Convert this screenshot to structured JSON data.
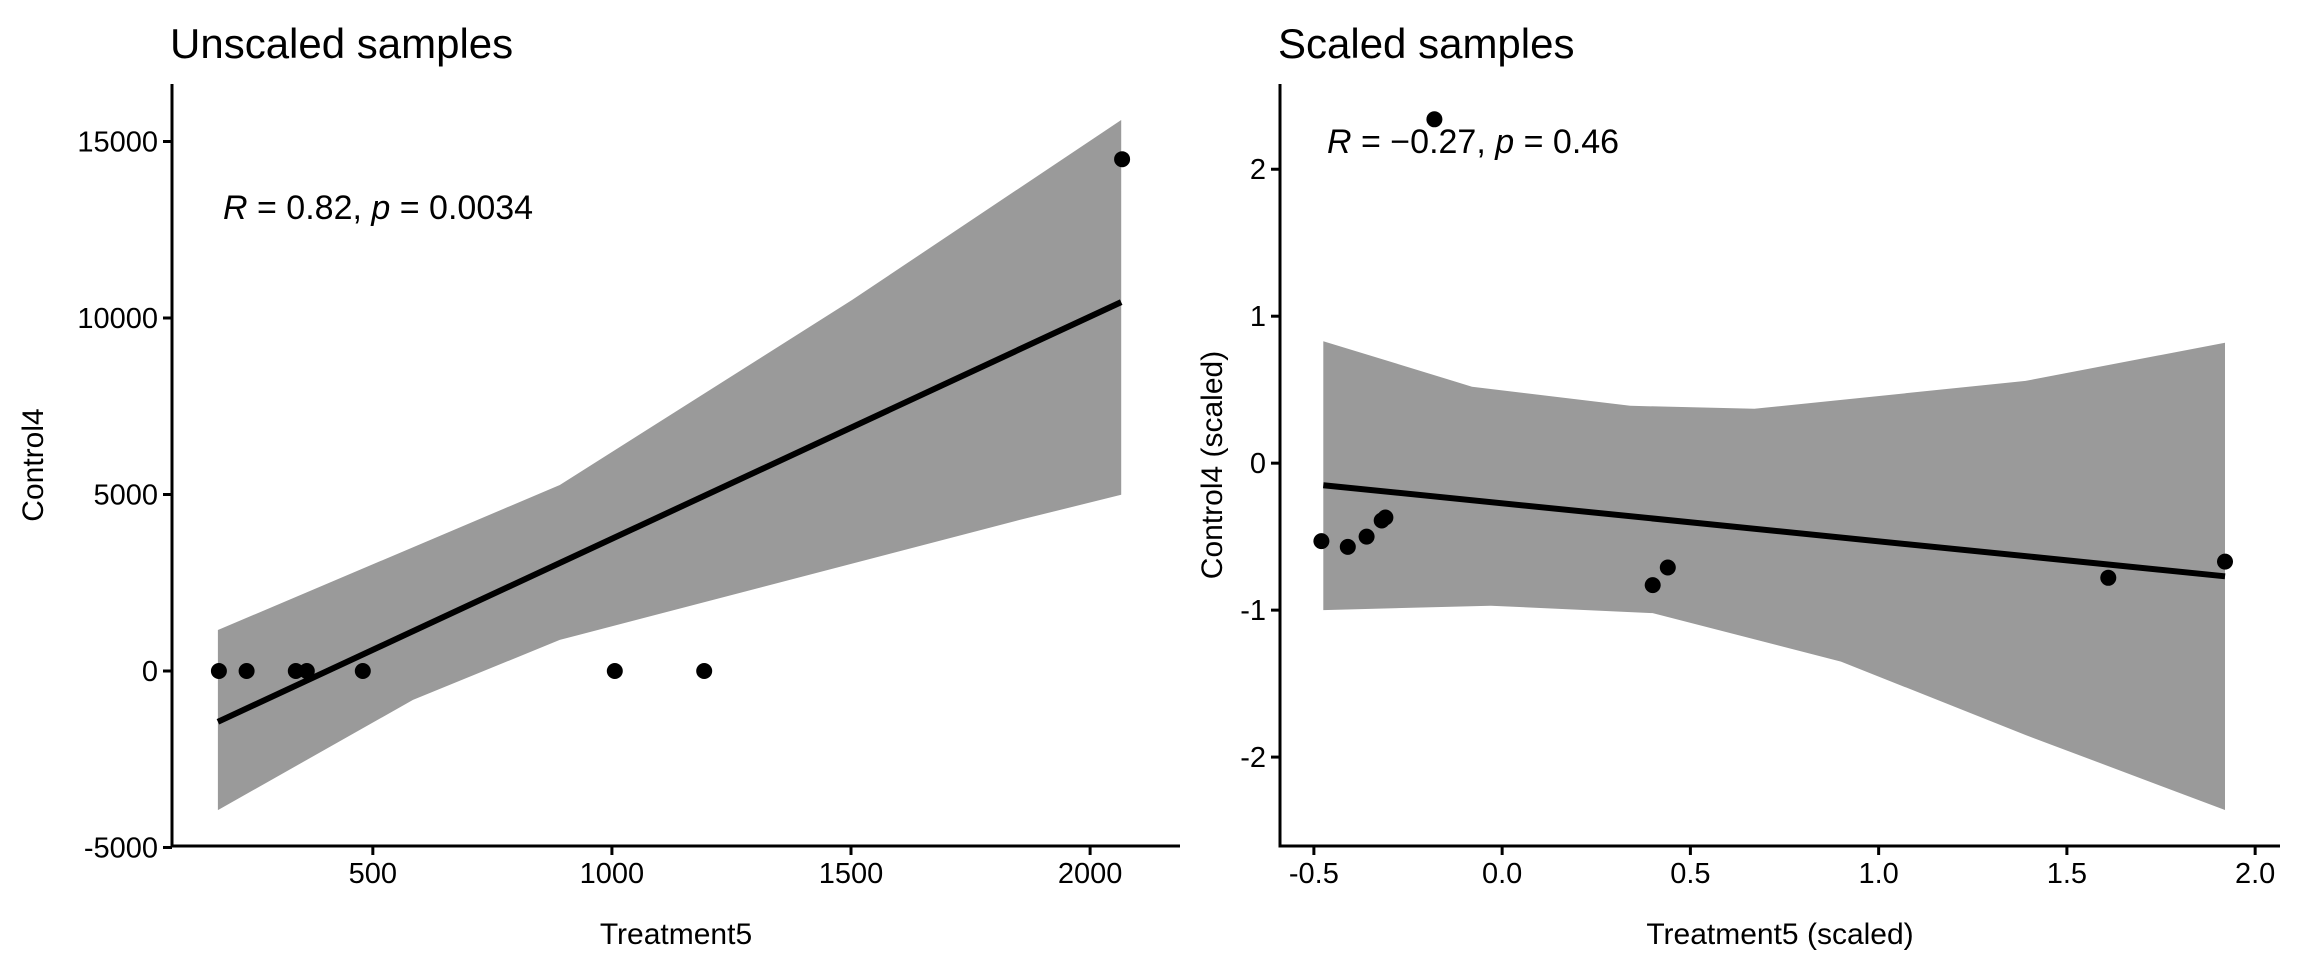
{
  "figure": {
    "background": "#ffffff"
  },
  "colors": {
    "band": "#9a9a9a",
    "line": "#000000",
    "points": "#000000",
    "axis": "#000000",
    "text": "#000000"
  },
  "chart_data": [
    {
      "type": "scatter",
      "title": "Unscaled samples",
      "xlabel": "Treatment5",
      "ylabel": "Control4",
      "stats": {
        "R": 0.82,
        "p": 0.0034
      },
      "annotation": {
        "r": "R",
        "r_rest": " = 0.82, ",
        "p": "p",
        "p_rest": " = 0.0034"
      },
      "legend": "none",
      "grid": false,
      "xlim": [
        80,
        2188
      ],
      "ylim": [
        -4958,
        16629
      ],
      "x_ticks": [
        {
          "v": 500,
          "label": "500"
        },
        {
          "v": 1000,
          "label": "1000"
        },
        {
          "v": 1500,
          "label": "1500"
        },
        {
          "v": 2000,
          "label": "2000"
        }
      ],
      "y_ticks": [
        {
          "v": -5000,
          "label": "-5000"
        },
        {
          "v": 0,
          "label": "0"
        },
        {
          "v": 5000,
          "label": "5000"
        },
        {
          "v": 10000,
          "label": "10000"
        },
        {
          "v": 15000,
          "label": "15000"
        }
      ],
      "points": [
        [
          178,
          0
        ],
        [
          236,
          0
        ],
        [
          339,
          0
        ],
        [
          362,
          0
        ],
        [
          479,
          0
        ],
        [
          1006,
          0
        ],
        [
          1193,
          0
        ],
        [
          2067,
          14500
        ]
      ],
      "regression_line": {
        "x1": 176,
        "y1": -1440,
        "x2": 2065,
        "y2": 10450
      },
      "confidence_band": {
        "upper": [
          [
            176,
            1160
          ],
          [
            891,
            5270
          ],
          [
            1502,
            10510
          ],
          [
            2065,
            15610
          ]
        ],
        "lower": [
          [
            176,
            -3940
          ],
          [
            584,
            -820
          ],
          [
            891,
            880
          ],
          [
            1853,
            4280
          ],
          [
            2065,
            4990
          ]
        ]
      }
    },
    {
      "type": "scatter",
      "title": "Scaled samples",
      "xlabel": "Treatment5 (scaled)",
      "ylabel": "Control4 (scaled)",
      "stats": {
        "R": -0.27,
        "p": 0.46
      },
      "annotation": {
        "r": "R",
        "r_rest": " = −0.27, ",
        "p": "p",
        "p_rest": " = 0.46"
      },
      "legend": "none",
      "grid": false,
      "xlim": [
        -0.59,
        2.066
      ],
      "ylim": [
        -2.605,
        2.58
      ],
      "x_ticks": [
        {
          "v": -0.5,
          "label": "-0.5"
        },
        {
          "v": 0.0,
          "label": "0.0"
        },
        {
          "v": 0.5,
          "label": "0.5"
        },
        {
          "v": 1.0,
          "label": "1.0"
        },
        {
          "v": 1.5,
          "label": "1.5"
        },
        {
          "v": 2.0,
          "label": "2.0"
        }
      ],
      "y_ticks": [
        {
          "v": -2,
          "label": "-2"
        },
        {
          "v": -1,
          "label": "-1"
        },
        {
          "v": 0,
          "label": "0"
        },
        {
          "v": 1,
          "label": "1"
        },
        {
          "v": 2,
          "label": "2"
        }
      ],
      "points": [
        [
          -0.48,
          -0.53
        ],
        [
          -0.41,
          -0.57
        ],
        [
          -0.36,
          -0.5
        ],
        [
          -0.32,
          -0.39
        ],
        [
          -0.31,
          -0.37
        ],
        [
          -0.18,
          2.34
        ],
        [
          0.4,
          -0.83
        ],
        [
          0.44,
          -0.71
        ],
        [
          1.61,
          -0.78
        ],
        [
          1.92,
          -0.67
        ]
      ],
      "regression_line": {
        "x1": -0.475,
        "y1": -0.15,
        "x2": 1.92,
        "y2": -0.77
      },
      "confidence_band": {
        "upper": [
          [
            -0.475,
            0.83
          ],
          [
            -0.08,
            0.52
          ],
          [
            0.34,
            0.39
          ],
          [
            0.67,
            0.37
          ],
          [
            1.39,
            0.56
          ],
          [
            1.92,
            0.82
          ]
        ],
        "lower": [
          [
            -0.475,
            -1.0
          ],
          [
            -0.03,
            -0.97
          ],
          [
            0.4,
            -1.02
          ],
          [
            0.9,
            -1.35
          ],
          [
            1.39,
            -1.85
          ],
          [
            1.92,
            -2.36
          ]
        ]
      }
    }
  ]
}
